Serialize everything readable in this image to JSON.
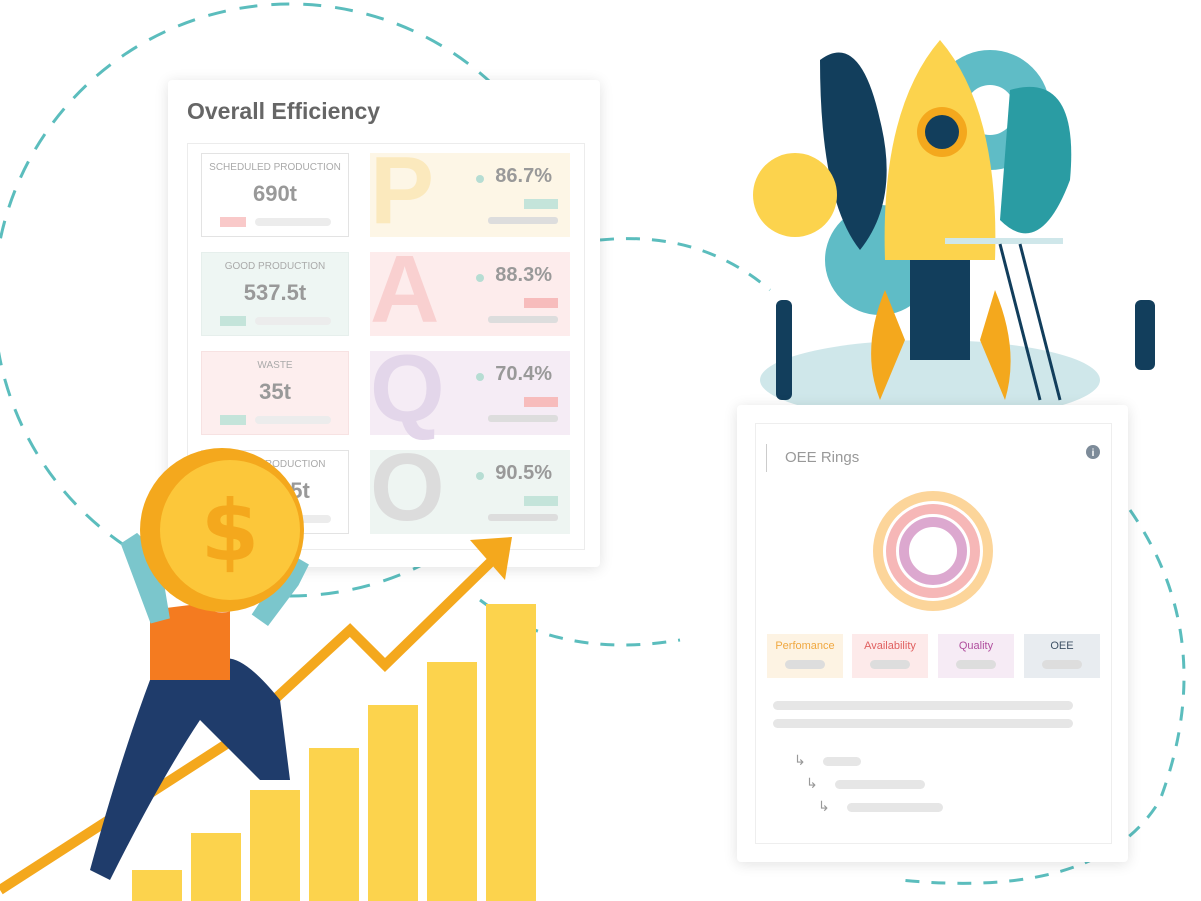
{
  "efficiency": {
    "title": "Overall Efficiency",
    "stats": [
      {
        "label": "SCHEDULED PRODUCTION",
        "value": "690t"
      },
      {
        "label": "GOOD PRODUCTION",
        "value": "537.5t"
      },
      {
        "label": "WASTE",
        "value": "35t"
      },
      {
        "label": "TOTAL PRODUCTION",
        "value": "5t"
      }
    ],
    "metrics": [
      {
        "letter": "P",
        "value": "86.7%"
      },
      {
        "letter": "A",
        "value": "88.3%"
      },
      {
        "letter": "Q",
        "value": "70.4%"
      },
      {
        "letter": "O",
        "value": "90.5%"
      }
    ]
  },
  "oee": {
    "title": "OEE Rings",
    "legend": [
      "Perfomance",
      "Availability",
      "Quality",
      "OEE"
    ]
  }
}
